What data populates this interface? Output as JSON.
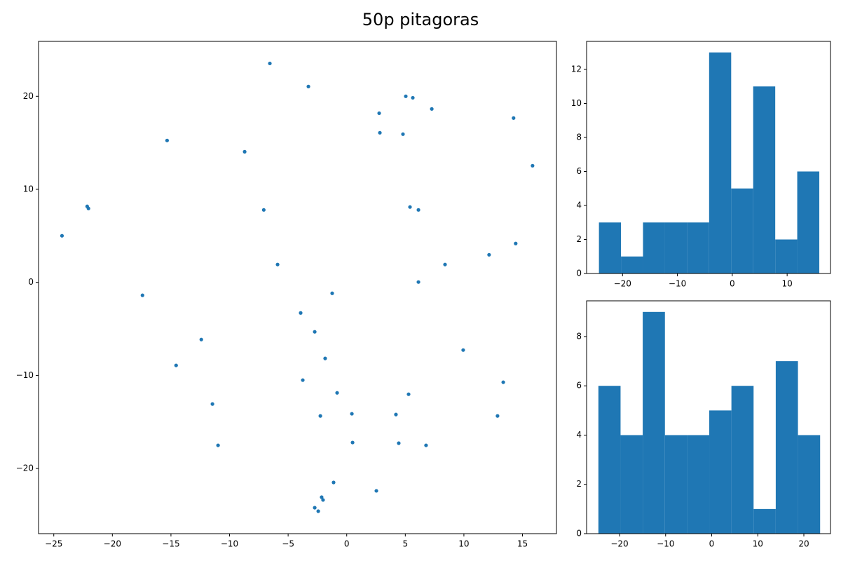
{
  "title": "50p pitagoras",
  "chart_data": [
    {
      "type": "scatter",
      "color": "#1f77b4",
      "x": [
        -6.56,
        -3.27,
        5.04,
        5.64,
        7.26,
        2.77,
        14.24,
        2.83,
        4.8,
        -15.33,
        -8.71,
        15.86,
        -22.15,
        -22.04,
        -7.08,
        5.4,
        6.12,
        -24.3,
        14.42,
        12.15,
        -5.9,
        8.39,
        6.12,
        -17.43,
        -1.24,
        -3.93,
        -2.73,
        -12.41,
        9.94,
        -1.84,
        -14.56,
        -3.75,
        13.36,
        -0.82,
        5.28,
        -11.46,
        0.44,
        4.2,
        -2.25,
        12.87,
        -10.98,
        0.5,
        4.44,
        6.77,
        -1.12,
        2.53,
        -2.14,
        -2.02,
        -2.73,
        -2.43
      ],
      "values": [
        23.53,
        21.05,
        20.0,
        19.84,
        18.64,
        18.18,
        17.66,
        16.08,
        15.93,
        15.25,
        14.04,
        12.54,
        8.17,
        7.94,
        7.79,
        8.1,
        7.79,
        5.01,
        4.18,
        2.97,
        1.92,
        1.92,
        0.04,
        -1.39,
        -1.17,
        -3.28,
        -5.31,
        -6.14,
        -7.27,
        -8.17,
        -8.92,
        -10.5,
        -10.73,
        -11.87,
        -12.02,
        -13.07,
        -14.12,
        -14.2,
        -14.35,
        -14.35,
        -17.51,
        -17.21,
        -17.28,
        -17.51,
        -21.5,
        -22.4,
        -23.08,
        -23.38,
        -24.21,
        -24.59
      ],
      "xlim": [
        -26.3,
        17.9
      ],
      "ylim": [
        -27.0,
        25.9
      ],
      "xticks": [
        {
          "value": -25,
          "label": "−25"
        },
        {
          "value": -20,
          "label": "−20"
        },
        {
          "value": -15,
          "label": "−15"
        },
        {
          "value": -10,
          "label": "−10"
        },
        {
          "value": -5,
          "label": "−5"
        },
        0,
        5,
        10,
        15
      ],
      "yticks": [
        {
          "value": -20,
          "label": "−20"
        },
        {
          "value": -10,
          "label": "−10"
        },
        0,
        10,
        20
      ]
    },
    {
      "type": "histogram",
      "color": "#1f77b4",
      "bins": [
        -24.3,
        -20.28,
        -16.27,
        -12.25,
        -8.24,
        -4.22,
        -0.2,
        3.81,
        7.83,
        11.84,
        15.86
      ],
      "values": [
        3,
        1,
        3,
        3,
        3,
        13,
        5,
        11,
        2,
        6
      ],
      "xlim": [
        -26.55,
        17.9
      ],
      "ylim": [
        0,
        13.65
      ],
      "xticks": [
        {
          "value": -20,
          "label": "−20"
        },
        {
          "value": -10,
          "label": "−10"
        },
        0,
        10
      ],
      "yticks": [
        0,
        2,
        4,
        6,
        8,
        10,
        12
      ]
    },
    {
      "type": "histogram",
      "color": "#1f77b4",
      "bins": [
        -24.59,
        -19.78,
        -14.97,
        -10.15,
        -5.34,
        -0.53,
        4.28,
        9.09,
        13.9,
        18.72,
        23.53
      ],
      "values": [
        6,
        4,
        9,
        4,
        4,
        5,
        6,
        1,
        7,
        4
      ],
      "xlim": [
        -27.15,
        25.78
      ],
      "ylim": [
        0,
        9.45
      ],
      "xticks": [
        {
          "value": -20,
          "label": "−20"
        },
        {
          "value": -10,
          "label": "−10"
        },
        0,
        10,
        20
      ],
      "yticks": [
        0,
        2,
        4,
        6,
        8
      ]
    }
  ]
}
